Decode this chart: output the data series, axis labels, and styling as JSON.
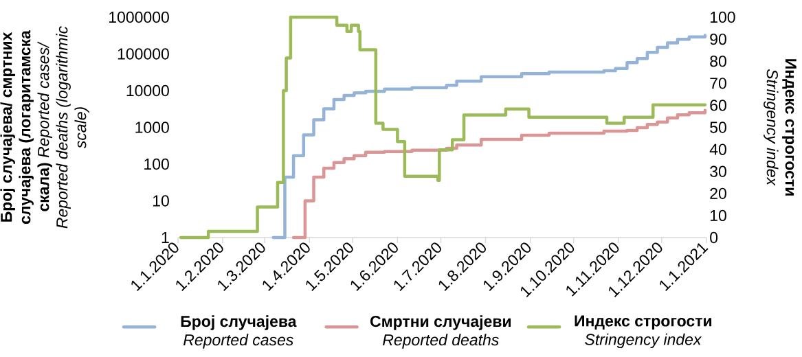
{
  "chart_data": {
    "type": "step",
    "ylabel": "**Број случајева/ смртних случајева (логаритамска скала)** *Reported cases/ Reported deaths (logarithmic scale)*",
    "y2label": "**Индекс строгости** *Stringency index*",
    "log": "y",
    "xlim": [
      "2020-01-01",
      "2021-01-01"
    ],
    "xticks": [
      {
        "value": "2020-01-01",
        "label": "1.1.2020"
      },
      {
        "value": "2020-02-01",
        "label": "1.2.2020"
      },
      {
        "value": "2020-03-01",
        "label": "1.3.2020"
      },
      {
        "value": "2020-04-01",
        "label": "1.4.2020"
      },
      {
        "value": "2020-05-01",
        "label": "1.5.2020"
      },
      {
        "value": "2020-06-01",
        "label": "1.6.2020"
      },
      {
        "value": "2020-07-01",
        "label": "1.7.2020"
      },
      {
        "value": "2020-08-01",
        "label": "1.8.2020"
      },
      {
        "value": "2020-09-01",
        "label": "1.9.2020"
      },
      {
        "value": "2020-10-01",
        "label": "1.10.2020"
      },
      {
        "value": "2020-11-01",
        "label": "1.11.2020"
      },
      {
        "value": "2020-12-01",
        "label": "1.12.2020"
      },
      {
        "value": "2021-01-01",
        "label": "1.1.2021"
      }
    ],
    "ylim": [
      1,
      1000000
    ],
    "yticks": [
      1,
      10,
      100,
      1000,
      10000,
      100000,
      1000000
    ],
    "y2lim": [
      0,
      100
    ],
    "y2ticks": [
      0,
      10,
      20,
      30,
      40,
      50,
      60,
      70,
      80,
      90,
      100
    ],
    "legend": "bottom",
    "series": [
      {
        "name": "**Број случајева** *Reported cases*",
        "color": "#95b3d7",
        "x": [
          "2020-03-07",
          "2020-03-15",
          "2020-03-21",
          "2020-03-28",
          "2020-04-04",
          "2020-04-11",
          "2020-04-18",
          "2020-04-25",
          "2020-05-02",
          "2020-05-10",
          "2020-05-23",
          "2020-06-11",
          "2020-07-05",
          "2020-07-12",
          "2020-07-29",
          "2020-08-26",
          "2020-09-14",
          "2020-10-22",
          "2020-10-30",
          "2020-11-07",
          "2020-11-14",
          "2020-11-21",
          "2020-11-28",
          "2020-12-05",
          "2020-12-12",
          "2020-12-20",
          "2020-12-31"
        ],
        "values": [
          1,
          44,
          170,
          620,
          1600,
          3200,
          5700,
          7400,
          8700,
          9600,
          11000,
          12000,
          14000,
          18000,
          24000,
          29000,
          32000,
          35000,
          40000,
          58000,
          75000,
          110000,
          150000,
          200000,
          250000,
          290000,
          320000
        ]
      },
      {
        "name": "**Смртни случајеви** *Reported deaths*",
        "color": "#d99694",
        "x": [
          "2020-03-21",
          "2020-03-29",
          "2020-04-04",
          "2020-04-11",
          "2020-04-18",
          "2020-04-25",
          "2020-05-02",
          "2020-05-10",
          "2020-05-23",
          "2020-06-11",
          "2020-07-05",
          "2020-07-12",
          "2020-07-29",
          "2020-08-26",
          "2020-09-14",
          "2020-10-22",
          "2020-11-07",
          "2020-11-14",
          "2020-11-21",
          "2020-11-28",
          "2020-12-05",
          "2020-12-12",
          "2020-12-20",
          "2020-12-31"
        ],
        "values": [
          1,
          10,
          44,
          77,
          110,
          140,
          170,
          210,
          220,
          240,
          270,
          330,
          470,
          610,
          690,
          790,
          820,
          980,
          1200,
          1400,
          1800,
          2200,
          2500,
          2900
        ]
      },
      {
        "name": "**Индекс строгости** *Stringency index*",
        "color": "#9bbb59",
        "axis": "y2",
        "x": [
          "2020-01-03",
          "2020-01-22",
          "2020-02-25",
          "2020-03-10",
          "2020-03-14",
          "2020-03-16",
          "2020-03-19",
          "2020-04-20",
          "2020-04-27",
          "2020-04-30",
          "2020-05-05",
          "2020-05-06",
          "2020-05-17",
          "2020-05-22",
          "2020-06-01",
          "2020-06-06",
          "2020-06-29",
          "2020-06-30",
          "2020-07-09",
          "2020-07-17",
          "2020-08-15",
          "2020-08-31",
          "2020-10-24",
          "2020-11-05",
          "2020-11-25",
          "2020-12-31"
        ],
        "values": [
          0,
          2.8,
          13.9,
          25,
          66.7,
          81.5,
          100,
          96.3,
          93.5,
          96.3,
          93.5,
          85.2,
          51.9,
          49.1,
          43.5,
          27.8,
          25.9,
          39.8,
          44.4,
          55.6,
          58.3,
          54.6,
          51.9,
          54.6,
          60.2,
          60.2
        ]
      }
    ]
  }
}
